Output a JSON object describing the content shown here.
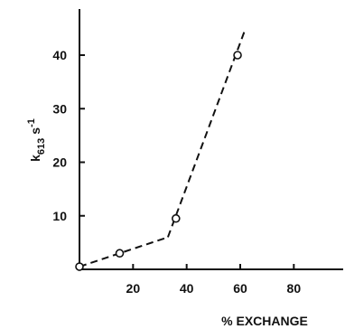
{
  "chart_data": {
    "type": "scatter",
    "title": "",
    "xlabel": "% EXCHANGE",
    "ylabel": "k613 s-1",
    "ylabel_parts": {
      "main": "k",
      "subscript": "613",
      "unit": "s",
      "exponent": "-1"
    },
    "xlim": [
      0,
      100
    ],
    "ylim": [
      0,
      45
    ],
    "x_ticks": [
      20,
      40,
      60,
      80
    ],
    "y_ticks": [
      10,
      20,
      30,
      40
    ],
    "grid": false,
    "series": [
      {
        "marker": "open-circle",
        "x": [
          0,
          15,
          36,
          59
        ],
        "y": [
          0.5,
          3.0,
          9.5,
          40.0
        ]
      }
    ],
    "fit_lines": [
      {
        "style": "dashed",
        "x": [
          0,
          33
        ],
        "y": [
          0.5,
          6.0
        ]
      },
      {
        "style": "dashed",
        "x": [
          33,
          62
        ],
        "y": [
          6.0,
          45.0
        ]
      }
    ]
  }
}
